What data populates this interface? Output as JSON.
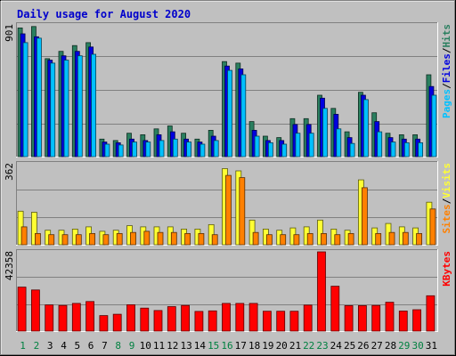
{
  "chart_data": {
    "type": "bar",
    "title": "Daily usage for August 2020",
    "categories": [
      "1",
      "2",
      "3",
      "4",
      "5",
      "6",
      "7",
      "8",
      "9",
      "10",
      "11",
      "12",
      "13",
      "14",
      "15",
      "16",
      "17",
      "18",
      "19",
      "20",
      "21",
      "22",
      "23",
      "24",
      "25",
      "26",
      "27",
      "28",
      "29",
      "30",
      "31"
    ],
    "weekend_days": [
      "1",
      "2",
      "8",
      "9",
      "15",
      "16",
      "22",
      "23",
      "29",
      "30"
    ],
    "colors": {
      "hits": "#2a7f5f",
      "files": "#0000e0",
      "pages": "#00c0ff",
      "visits": "#ffff33",
      "sites": "#ff8000",
      "kbytes": "#ff0000",
      "weekend": "#008040",
      "weekday": "#000000"
    },
    "panels": [
      {
        "id": "top",
        "ytick": "901",
        "ylim": [
          0,
          901
        ],
        "labels": [
          {
            "text": "Pages",
            "color": "#00c0ff"
          },
          {
            "text": "/",
            "color": "#000000"
          },
          {
            "text": "Files",
            "color": "#0000e0"
          },
          {
            "text": "/",
            "color": "#000000"
          },
          {
            "text": "Hits",
            "color": "#2a7f5f"
          }
        ],
        "series": [
          {
            "name": "Hits",
            "color": "#2a7f5f",
            "values": [
              880,
              890,
              670,
              720,
              760,
              780,
              120,
              110,
              160,
              150,
              190,
              210,
              160,
              120,
              180,
              650,
              640,
              240,
              140,
              130,
              260,
              260,
              420,
              330,
              170,
              440,
              300,
              160,
              150,
              150,
              560
            ]
          },
          {
            "name": "Files",
            "color": "#0000e0",
            "values": [
              840,
              820,
              660,
              690,
              720,
              750,
              100,
              95,
              120,
              110,
              150,
              170,
              120,
              100,
              140,
              620,
              600,
              180,
              110,
              110,
              220,
              220,
              400,
              290,
              130,
              420,
              240,
              130,
              120,
              120,
              480
            ]
          },
          {
            "name": "Pages",
            "color": "#00c0ff",
            "values": [
              780,
              810,
              640,
              660,
              690,
              700,
              85,
              80,
              100,
              100,
              110,
              120,
              100,
              85,
              110,
              590,
              560,
              140,
              95,
              85,
              160,
              160,
              330,
              190,
              90,
              390,
              170,
              100,
              95,
              95,
              420
            ]
          }
        ]
      },
      {
        "id": "middle",
        "ytick": "362",
        "ylim": [
          0,
          362
        ],
        "labels": [
          {
            "text": "Sites",
            "color": "#ff8000"
          },
          {
            "text": "/",
            "color": "#000000"
          },
          {
            "text": "Visits",
            "color": "#ffff33"
          }
        ],
        "series": [
          {
            "name": "Visits",
            "color": "#ffff33",
            "values": [
              150,
              145,
              65,
              65,
              70,
              80,
              60,
              65,
              85,
              80,
              80,
              80,
              70,
              70,
              90,
              340,
              330,
              110,
              70,
              65,
              75,
              80,
              110,
              70,
              65,
              290,
              75,
              95,
              80,
              75,
              190
            ]
          },
          {
            "name": "Sites",
            "color": "#ff8000",
            "values": [
              80,
              50,
              45,
              45,
              45,
              50,
              45,
              50,
              55,
              60,
              55,
              55,
              50,
              50,
              45,
              310,
              300,
              55,
              45,
              45,
              45,
              50,
              50,
              45,
              50,
              255,
              50,
              55,
              55,
              50,
              160
            ]
          }
        ]
      },
      {
        "id": "bottom",
        "ytick": "42358",
        "ylim": [
          0,
          42358
        ],
        "labels": [
          {
            "text": "KBytes",
            "color": "#ff0000"
          }
        ],
        "series": [
          {
            "name": "KBytes",
            "color": "#ff0000",
            "values": [
              23500,
              22000,
              14000,
              13700,
              14800,
              15800,
              8300,
              9000,
              14100,
              12300,
              11000,
              13100,
              13700,
              10500,
              10800,
              14800,
              14800,
              14800,
              10600,
              10600,
              10600,
              13900,
              42358,
              24000,
              13600,
              13600,
              13700,
              15400,
              10700,
              11400,
              18900
            ]
          }
        ]
      }
    ]
  }
}
